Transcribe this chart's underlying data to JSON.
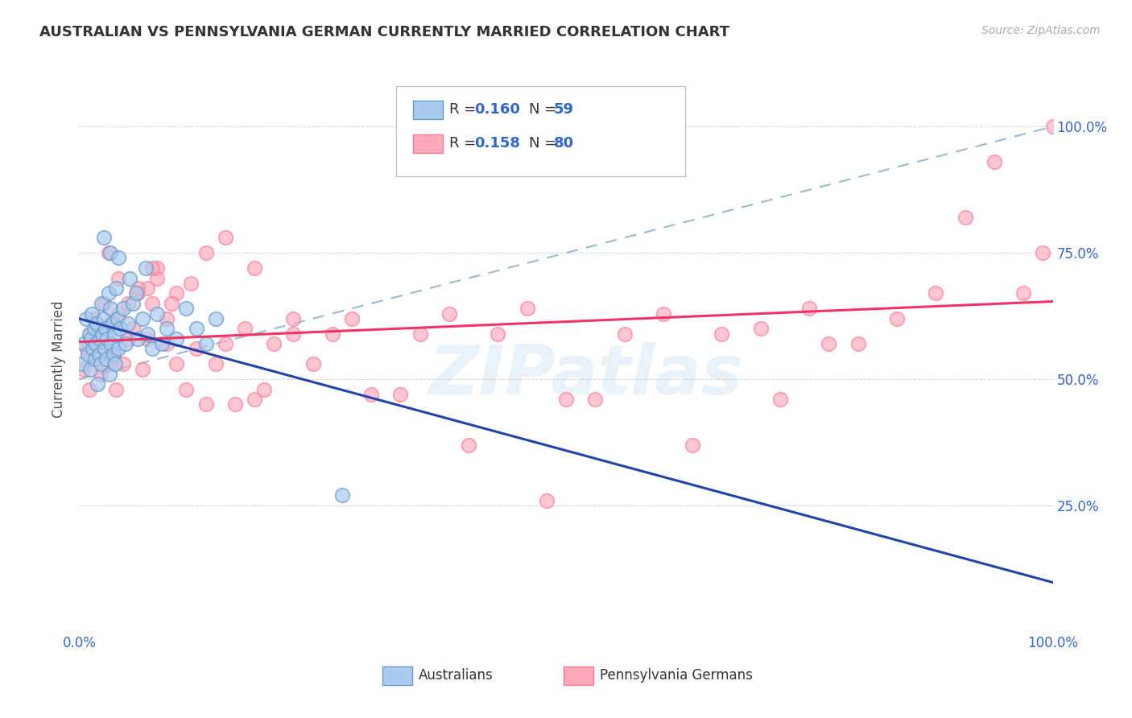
{
  "title": "AUSTRALIAN VS PENNSYLVANIA GERMAN CURRENTLY MARRIED CORRELATION CHART",
  "source": "Source: ZipAtlas.com",
  "ylabel": "Currently Married",
  "legend_label1": "Australians",
  "legend_label2": "Pennsylvania Germans",
  "blue_color": "#AACCEE",
  "pink_color": "#FFAABB",
  "blue_edge": "#6699CC",
  "pink_edge": "#FF7799",
  "trend_blue": "#2244AA",
  "trend_pink": "#EE3366",
  "ref_line_color": "#99BBCC",
  "watermark_text": "ZIPatlas",
  "blue_x": [
    0.3,
    0.5,
    0.7,
    0.9,
    1.0,
    1.1,
    1.2,
    1.3,
    1.4,
    1.5,
    1.6,
    1.7,
    1.8,
    1.9,
    2.0,
    2.1,
    2.2,
    2.3,
    2.4,
    2.5,
    2.6,
    2.7,
    2.8,
    2.9,
    3.0,
    3.1,
    3.2,
    3.3,
    3.4,
    3.5,
    3.6,
    3.7,
    3.8,
    3.9,
    4.0,
    4.2,
    4.5,
    4.8,
    5.0,
    5.5,
    6.0,
    6.5,
    7.0,
    7.5,
    8.0,
    8.5,
    9.0,
    10.0,
    11.0,
    12.0,
    13.0,
    14.0,
    5.2,
    5.8,
    3.2,
    6.8,
    2.5,
    4.0,
    27.0
  ],
  "blue_y": [
    53,
    57,
    62,
    55,
    59,
    52,
    58,
    63,
    56,
    60,
    54,
    57,
    61,
    49,
    55,
    58,
    53,
    65,
    59,
    62,
    56,
    60,
    54,
    58,
    67,
    51,
    64,
    57,
    61,
    55,
    59,
    53,
    68,
    62,
    56,
    60,
    64,
    57,
    61,
    65,
    58,
    62,
    59,
    56,
    63,
    57,
    60,
    58,
    64,
    60,
    57,
    62,
    70,
    67,
    75,
    72,
    78,
    74,
    27
  ],
  "pink_x": [
    0.5,
    0.8,
    1.0,
    1.2,
    1.5,
    1.8,
    2.0,
    2.2,
    2.5,
    2.8,
    3.0,
    3.2,
    3.5,
    3.8,
    4.0,
    4.5,
    5.0,
    5.5,
    6.0,
    6.5,
    7.0,
    7.5,
    8.0,
    9.0,
    10.0,
    11.0,
    12.0,
    13.0,
    14.0,
    15.0,
    16.0,
    17.0,
    18.0,
    19.0,
    20.0,
    22.0,
    24.0,
    26.0,
    28.0,
    30.0,
    33.0,
    35.0,
    38.0,
    40.0,
    43.0,
    46.0,
    50.0,
    53.0,
    56.0,
    60.0,
    63.0,
    66.0,
    70.0,
    72.0,
    75.0,
    77.0,
    80.0,
    84.0,
    88.0,
    91.0,
    94.0,
    97.0,
    99.0,
    100.0,
    8.0,
    10.0,
    13.0,
    15.0,
    18.0,
    22.0,
    7.0,
    9.0,
    3.0,
    4.0,
    5.0,
    6.0,
    7.5,
    9.5,
    11.5,
    48.0
  ],
  "pink_y": [
    52,
    56,
    48,
    59,
    62,
    54,
    60,
    51,
    65,
    57,
    53,
    61,
    55,
    48,
    63,
    53,
    58,
    60,
    67,
    52,
    58,
    65,
    72,
    57,
    53,
    48,
    56,
    45,
    53,
    57,
    45,
    60,
    46,
    48,
    57,
    59,
    53,
    59,
    62,
    47,
    47,
    59,
    63,
    37,
    59,
    64,
    46,
    46,
    59,
    63,
    37,
    59,
    60,
    46,
    64,
    57,
    57,
    62,
    67,
    82,
    93,
    67,
    75,
    100,
    70,
    67,
    75,
    78,
    72,
    62,
    68,
    62,
    75,
    70,
    65,
    68,
    72,
    65,
    69,
    26
  ],
  "ref_line_x": [
    0,
    100
  ],
  "ref_line_y": [
    50,
    100
  ],
  "xlim": [
    0,
    100
  ],
  "ylim": [
    0,
    108
  ],
  "yticks": [
    25,
    50,
    75,
    100
  ],
  "ytick_labels": [
    "25.0%",
    "50.0%",
    "75.0%",
    "100.0%"
  ],
  "xtick_left_label": "0.0%",
  "xtick_right_label": "100.0%"
}
